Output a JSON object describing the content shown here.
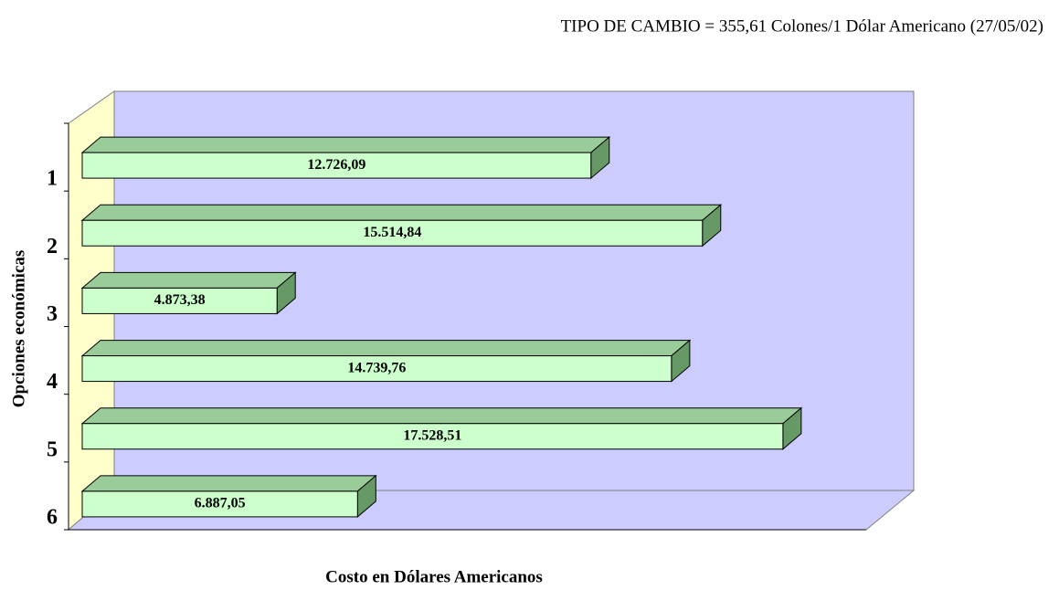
{
  "chart_data": {
    "type": "bar",
    "orientation": "horizontal",
    "title": "TIPO DE CAMBIO = 355,61 Colones/1 Dólar Americano (27/05/02)",
    "x_label": "Costo en Dólares Americanos",
    "y_label": "Opciones económicas",
    "categories": [
      "1",
      "2",
      "3",
      "4",
      "5",
      "6"
    ],
    "values": [
      12726.09,
      15514.84,
      4873.38,
      14739.76,
      17528.51,
      6887.05
    ],
    "value_labels": [
      "12.726,09",
      "15.514,84",
      "4.873,38",
      "14.739,76",
      "17.528,51",
      "6.887,05"
    ],
    "xlim": [
      0,
      20000
    ],
    "color": "#ccffcc"
  }
}
